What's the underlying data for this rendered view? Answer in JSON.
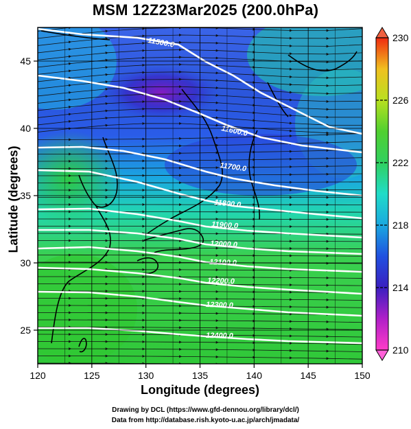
{
  "title": "MSM 12Z23Mar2025 (200.0hPa)",
  "xlabel": "Longitude (degrees)",
  "ylabel": "Latitude  (degrees)",
  "credits": [
    "Drawing by DCL (https://www.gfd-dennou.org/library/dcl/)",
    "Data from http://database.rish.kyoto-u.ac.jp/arch/jmadata/"
  ],
  "map": {
    "lon_range": [
      120,
      150
    ],
    "lat_range": [
      22.5,
      47.5
    ],
    "lon_ticks": [
      "120",
      "125",
      "130",
      "135",
      "140",
      "145",
      "150"
    ],
    "lat_ticks": [
      "25",
      "30",
      "35",
      "40",
      "45"
    ],
    "contour_labels": [
      "11500.0",
      "11600.0",
      "11700.0",
      "11800.0",
      "11900.0",
      "12000.0",
      "12100.0",
      "12200.0",
      "12300.0",
      "12400.0"
    ],
    "colorbar_ticks": [
      "210",
      "214",
      "218",
      "222",
      "226",
      "230"
    ],
    "colorbar_range": [
      210,
      230
    ],
    "colors": {
      "low": "#ff2bb0",
      "mid_low": "#1c20c0",
      "mid": "#1ad6d0",
      "mid_high": "#2ecc2e",
      "high": "#f02010"
    }
  }
}
